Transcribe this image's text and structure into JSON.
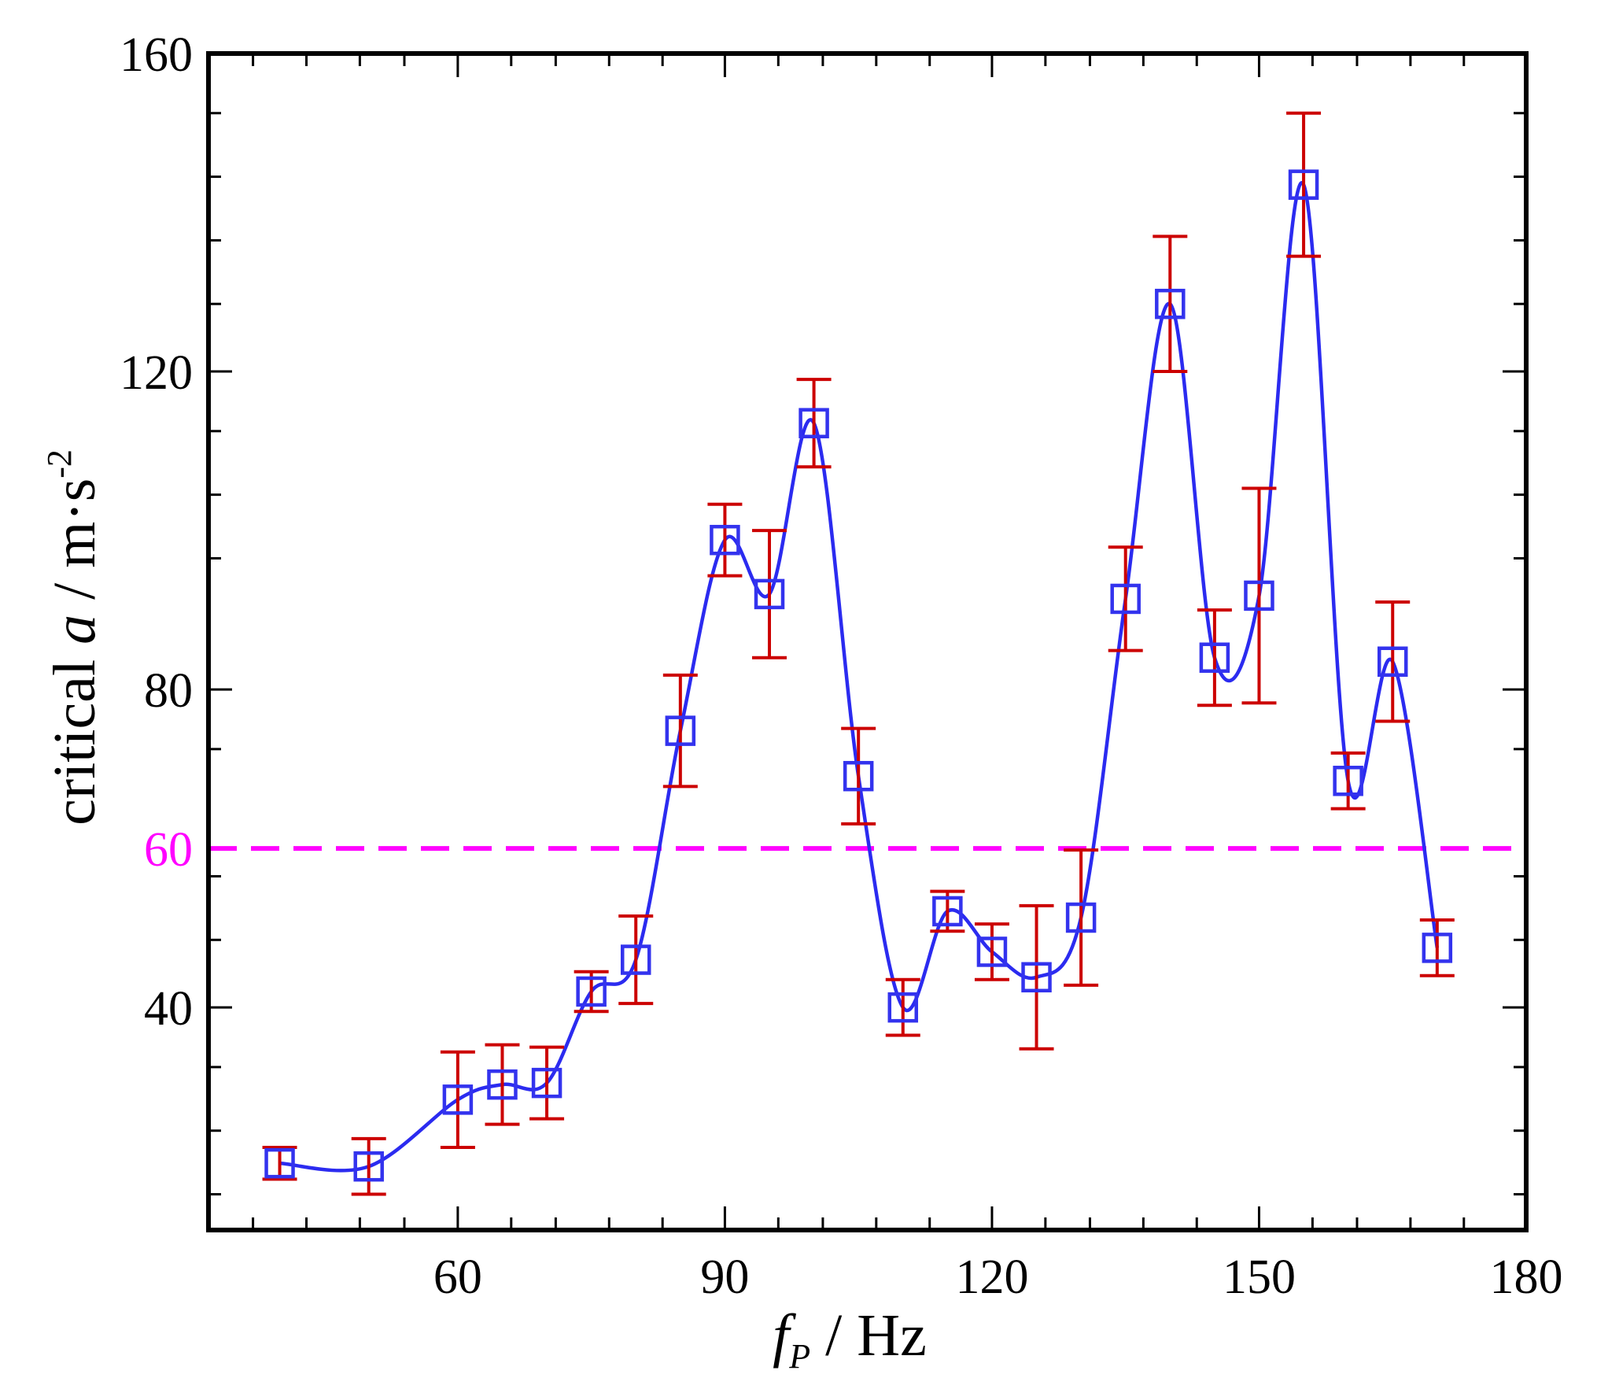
{
  "colors": {
    "axis": "#000000",
    "curve": "#2b2bf0",
    "marker": "#3333ee",
    "error_bar": "#cc0000",
    "threshold": "#ff00ff",
    "background": "#ffffff"
  },
  "chart_data": {
    "type": "scatter",
    "title": "",
    "xlabel_main": "f",
    "xlabel_subscript": "P",
    "xlabel_unit": " / Hz",
    "ylabel_prefix": "critical ",
    "ylabel_var": "a",
    "ylabel_unit": " / m·s",
    "ylabel_exp": "-2",
    "xlim": [
      32,
      180
    ],
    "ylim": [
      12,
      160
    ],
    "x_major_ticks": [
      60,
      90,
      120,
      150,
      180
    ],
    "x_tick_labels": [
      "60",
      "90",
      "120",
      "150",
      "180"
    ],
    "x_minor_ticks": [
      37,
      43,
      49,
      54,
      66,
      71,
      77,
      83,
      96,
      101,
      107,
      113,
      126,
      131,
      137,
      143,
      156,
      161,
      167,
      173
    ],
    "y_major_ticks": [
      40,
      80,
      120,
      160
    ],
    "y_tick_labels": [
      "40",
      "80",
      "120",
      "160"
    ],
    "y_minor_ticks": [
      16.5,
      24.5,
      32.5,
      48.5,
      56.5,
      72.5,
      96.5,
      104.5,
      112.5,
      128.5,
      136.5,
      144.5,
      152.5
    ],
    "threshold": {
      "value": 60,
      "label": "60",
      "style": "dashed"
    },
    "series": [
      {
        "name": "critical a",
        "marker": "square",
        "curve": "smooth",
        "x": [
          40,
          50,
          60,
          65,
          70,
          75,
          80,
          85,
          90,
          95,
          100,
          105,
          110,
          115,
          120,
          125,
          130,
          135,
          140,
          145,
          150,
          155,
          160,
          165,
          170
        ],
        "y": [
          20.4,
          20,
          28.4,
          30.3,
          30.5,
          42,
          46,
          74.8,
          98.8,
          92,
          113.5,
          69.1,
          40,
          52.1,
          47,
          43.8,
          51.3,
          91.4,
          128.5,
          84,
          91.8,
          143.5,
          68.5,
          83.5,
          47.5
        ],
        "err": [
          2,
          3.5,
          6,
          5,
          4.5,
          2.5,
          5.5,
          7,
          4.5,
          8,
          5.5,
          6,
          3.5,
          2.5,
          3.5,
          9,
          8.5,
          6.5,
          8.5,
          6,
          13.5,
          9,
          3.5,
          7.5,
          3.5
        ]
      }
    ]
  }
}
